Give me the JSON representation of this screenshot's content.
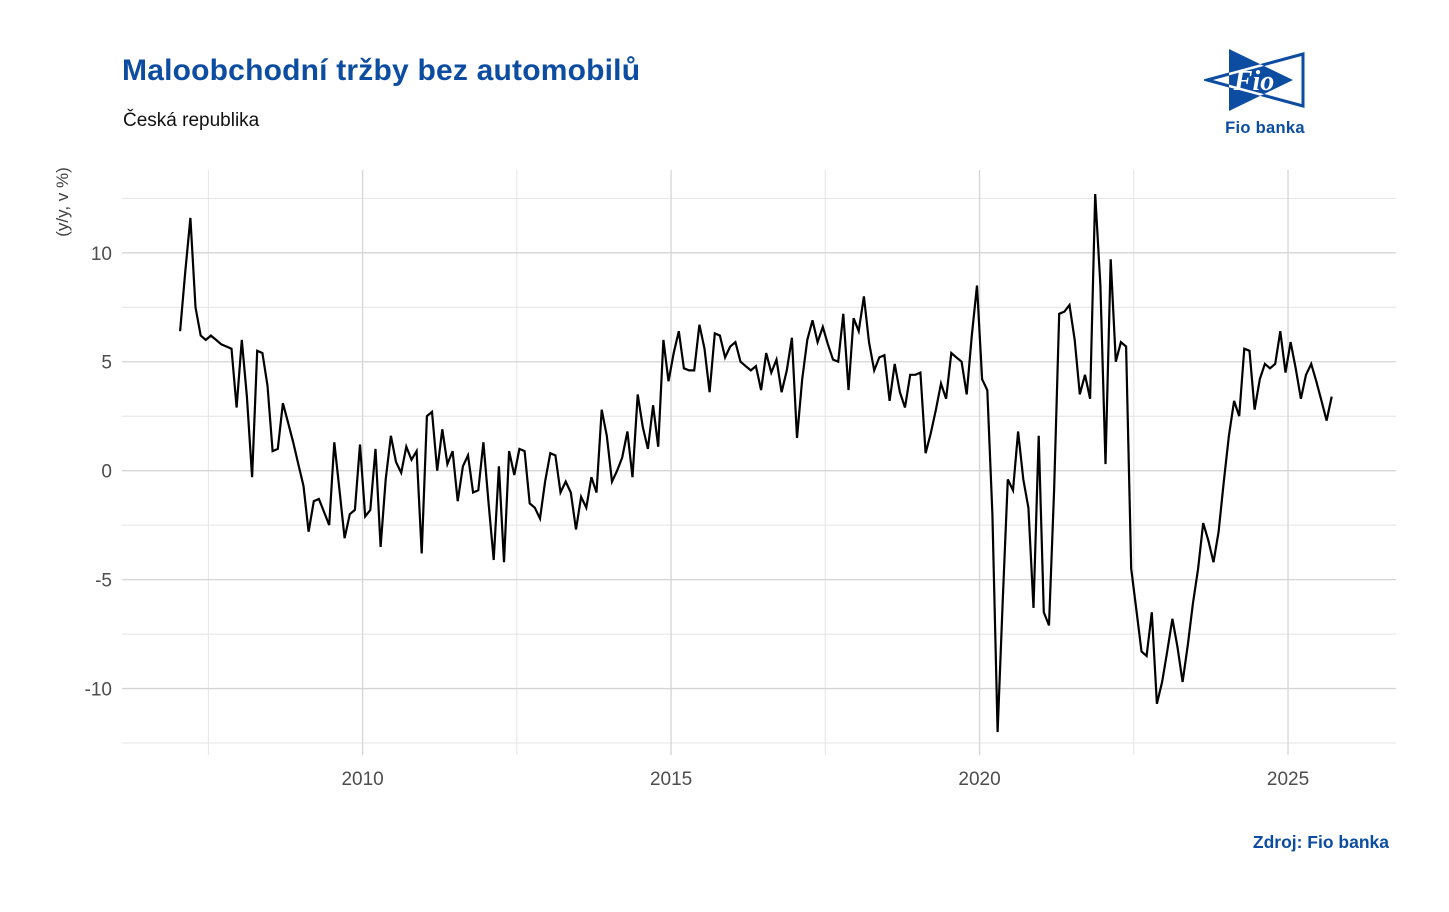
{
  "header": {
    "title": "Maloobchodní tržby bez automobilů",
    "subtitle": "Česká republika"
  },
  "logo": {
    "wordmark": "Fio",
    "caption": "Fio banka"
  },
  "footer": {
    "source": "Zdroj: Fio banka"
  },
  "colors": {
    "brand_blue": "#0c4da2",
    "line": "#000000",
    "grid_major": "#d5d5d5",
    "grid_minor": "#e4e4e4",
    "tick_text": "#4d4d4d"
  },
  "chart_data": {
    "type": "line",
    "title": "Maloobchodní tržby bez automobilů",
    "subtitle": "Česká republika",
    "ylabel": "(y/y, v %)",
    "xlabel": "",
    "grid": true,
    "legend": false,
    "xlim": [
      2006.1,
      2026.75
    ],
    "ylim": [
      -13.05,
      13.8
    ],
    "x_ticks": {
      "values": [
        2010,
        2015,
        2020,
        2025
      ],
      "labels": [
        "2010",
        "2015",
        "2020",
        "2025"
      ]
    },
    "x_minor": [
      2007.5,
      2012.5,
      2017.5,
      2022.5
    ],
    "y_ticks": {
      "values": [
        10,
        5,
        0,
        -5,
        -10
      ],
      "labels": [
        "10",
        "5",
        "0",
        "-5",
        "-10"
      ]
    },
    "y_minor": [
      12.5,
      7.5,
      2.5,
      -2.5,
      -7.5,
      -12.5
    ],
    "series": [
      {
        "name": "Maloobchodní tržby bez automobilů, y/y v %",
        "frequency": "monthly",
        "start_year": 2007,
        "start_month": 1,
        "end_year": 2025,
        "end_month": 9,
        "values": [
          6.4,
          9.1,
          11.6,
          7.5,
          6.2,
          6.0,
          6.2,
          6.0,
          5.8,
          5.7,
          5.6,
          2.9,
          6.0,
          3.4,
          -0.3,
          5.5,
          5.4,
          3.9,
          0.9,
          1.0,
          3.1,
          2.2,
          1.3,
          0.3,
          -0.7,
          -2.8,
          -1.4,
          -1.3,
          -1.9,
          -2.5,
          1.3,
          -0.9,
          -3.1,
          -2.0,
          -1.8,
          1.2,
          -2.1,
          -1.8,
          1.0,
          -3.5,
          -0.4,
          1.6,
          0.4,
          -0.1,
          1.1,
          0.5,
          0.9,
          -3.8,
          2.5,
          2.7,
          0.0,
          1.9,
          0.3,
          0.9,
          -1.4,
          0.2,
          0.7,
          -1.0,
          -0.9,
          1.3,
          -1.5,
          -4.1,
          0.2,
          -4.2,
          0.9,
          -0.2,
          1.0,
          0.9,
          -1.5,
          -1.7,
          -2.2,
          -0.5,
          0.8,
          0.7,
          -1.0,
          -0.5,
          -1.0,
          -2.7,
          -1.2,
          -1.7,
          -0.3,
          -1.0,
          2.8,
          1.6,
          -0.5,
          0.0,
          0.6,
          1.8,
          -0.3,
          3.5,
          2.0,
          1.0,
          3.0,
          1.1,
          6.0,
          4.1,
          5.4,
          6.4,
          4.7,
          4.6,
          4.6,
          6.7,
          5.6,
          3.6,
          6.3,
          6.2,
          5.2,
          5.7,
          5.9,
          5.0,
          4.8,
          4.6,
          4.8,
          3.7,
          5.4,
          4.5,
          5.1,
          3.6,
          4.6,
          6.1,
          1.5,
          4.2,
          6.0,
          6.9,
          5.9,
          6.6,
          5.8,
          5.1,
          5.0,
          7.2,
          3.7,
          7.0,
          6.4,
          8.0,
          5.9,
          4.6,
          5.2,
          5.3,
          3.2,
          4.9,
          3.6,
          2.9,
          4.4,
          4.4,
          4.5,
          0.8,
          1.7,
          2.8,
          4.0,
          3.3,
          5.4,
          5.2,
          5.0,
          3.5,
          6.2,
          8.5,
          4.2,
          3.7,
          -2.0,
          -12.0,
          -6.0,
          -0.4,
          -0.9,
          1.8,
          -0.4,
          -1.7,
          -6.3,
          1.6,
          -6.5,
          -7.1,
          -0.9,
          7.2,
          7.3,
          7.6,
          6.0,
          3.5,
          4.4,
          3.3,
          12.7,
          8.5,
          0.3,
          9.7,
          5.0,
          5.9,
          5.7,
          -4.5,
          -6.4,
          -8.3,
          -8.5,
          -6.5,
          -10.7,
          -9.7,
          -8.3,
          -6.8,
          -8.1,
          -9.7,
          -8.0,
          -6.1,
          -4.5,
          -2.4,
          -3.2,
          -4.2,
          -2.8,
          -0.5,
          1.6,
          3.2,
          2.5,
          5.6,
          5.5,
          2.8,
          4.2,
          4.9,
          4.7,
          4.9,
          6.4,
          4.5,
          5.9,
          4.7,
          3.3,
          4.4,
          4.9,
          4.1,
          3.2,
          2.3,
          3.4
        ]
      }
    ]
  }
}
